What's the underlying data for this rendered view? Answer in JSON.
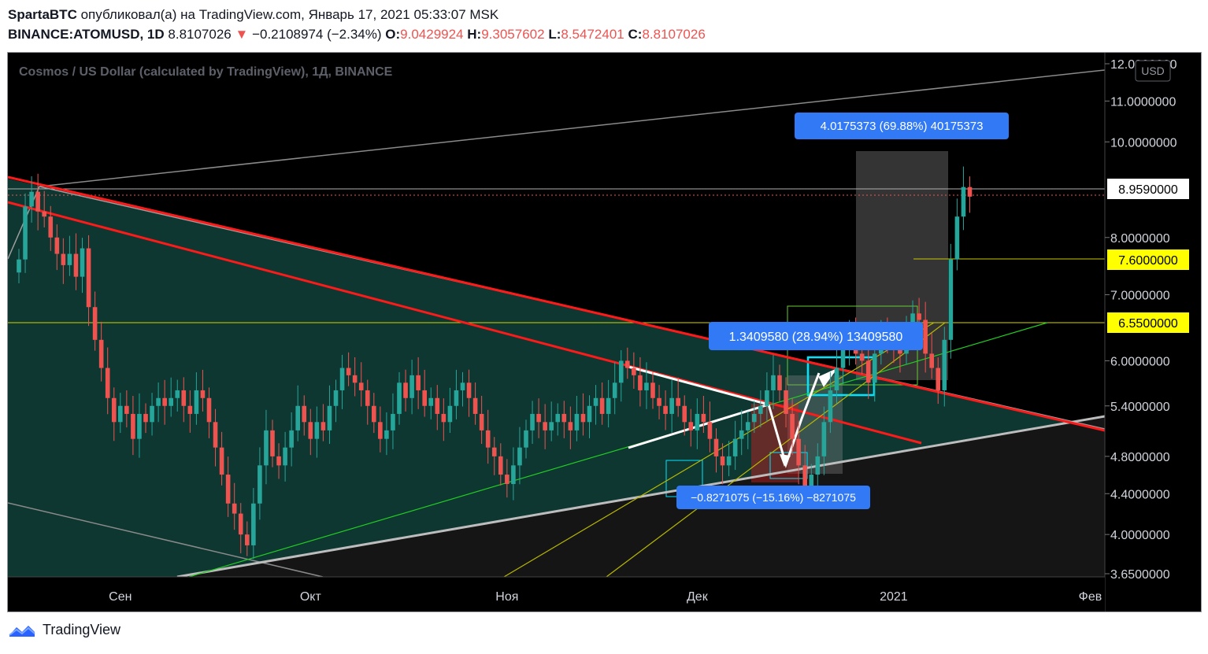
{
  "header": {
    "author": "SpartaBTC",
    "published_text": "опубликовал(а) на TradingView.com, Январь 17, 2021 05:33:07 MSK",
    "symbol": "BINANCE:ATOMUSD, 1D",
    "last_price": "8.8107026",
    "change_arrow": "▼",
    "change": "−0.2108974 (−2.34%)",
    "open_label": "O:",
    "open": "9.0429924",
    "high_label": "H:",
    "high": "9.3057602",
    "low_label": "L:",
    "low": "8.5472401",
    "close_label": "C:",
    "close": "8.8107026"
  },
  "legend_title": "Cosmos / US Dollar (calculated by TradingView), 1Д, BINANCE",
  "currency_badge": "USD",
  "price_badges": {
    "current": "8.9590000",
    "level_high": "7.6000000",
    "level_mid": "6.5500000"
  },
  "measure_labels": {
    "top": "4.0175373 (69.88%) 40175373",
    "mid": "1.3409580 (28.94%) 13409580",
    "low": "−0.8271075 (−15.16%) −8271075"
  },
  "footer": {
    "brand": "TradingView"
  },
  "colors": {
    "up": "#26a69a",
    "down": "#ef5350",
    "trendline_red": "#ff1a1a",
    "badge_yellow": "#ffff00",
    "label_blue": "#3179f5",
    "teal_zone": "#0d3b36"
  },
  "chart_data": {
    "type": "candlestick",
    "title": "Cosmos / US Dollar (calculated by TradingView), 1Д, BINANCE",
    "scale": "log",
    "ylim": [
      3.65,
      12.0
    ],
    "y_ticks": [
      "12.0000000",
      "11.0000000",
      "10.0000000",
      "8.0000000",
      "7.0000000",
      "6.0000000",
      "5.4000000",
      "4.8000000",
      "4.4000000",
      "4.0000000",
      "3.6500000"
    ],
    "x_ticks": [
      "Сен",
      "Окт",
      "Ноя",
      "Дек",
      "2021",
      "Фев"
    ],
    "date_range": [
      "2020-08-16",
      "2021-01-17"
    ],
    "horizontal_levels": [
      8.959,
      7.6,
      6.55
    ],
    "close": [
      7.6,
      8.6,
      8.9,
      8.5,
      8.4,
      8.0,
      7.7,
      7.5,
      7.7,
      7.3,
      7.8,
      6.8,
      6.3,
      5.9,
      5.5,
      5.2,
      5.4,
      5.3,
      5.0,
      5.3,
      5.2,
      5.4,
      5.5,
      5.4,
      5.5,
      5.6,
      5.4,
      5.3,
      5.6,
      5.5,
      5.2,
      4.9,
      4.6,
      4.3,
      4.2,
      4.0,
      3.9,
      4.3,
      4.7,
      5.1,
      4.8,
      4.7,
      4.9,
      5.1,
      5.4,
      5.2,
      5.0,
      5.2,
      5.1,
      5.4,
      5.6,
      5.9,
      5.8,
      5.7,
      5.6,
      5.4,
      5.2,
      5.0,
      5.1,
      5.3,
      5.7,
      5.5,
      5.8,
      5.6,
      5.4,
      5.5,
      5.3,
      5.2,
      5.4,
      5.6,
      5.7,
      5.5,
      5.3,
      5.1,
      4.9,
      4.8,
      4.6,
      4.5,
      4.7,
      4.9,
      5.1,
      5.3,
      5.2,
      5.1,
      5.2,
      5.3,
      5.2,
      5.1,
      5.3,
      5.2,
      5.4,
      5.5,
      5.3,
      5.5,
      5.7,
      6.0,
      5.9,
      5.8,
      5.6,
      5.7,
      5.5,
      5.4,
      5.3,
      5.5,
      5.4,
      5.2,
      5.1,
      5.3,
      5.2,
      5.0,
      4.8,
      4.7,
      4.8,
      5.0,
      5.1,
      5.2,
      5.3,
      5.4,
      5.6,
      5.8,
      5.6,
      5.3,
      5.0,
      4.7,
      4.4,
      4.6,
      4.8,
      5.2,
      5.6,
      5.9,
      6.2,
      6.4,
      6.1,
      6.0,
      5.7,
      6.1,
      6.4,
      6.3,
      6.2,
      6.1,
      6.5,
      6.7,
      6.6,
      6.1,
      5.9,
      5.6,
      6.3,
      7.6,
      8.4,
      9.0,
      8.8
    ]
  }
}
